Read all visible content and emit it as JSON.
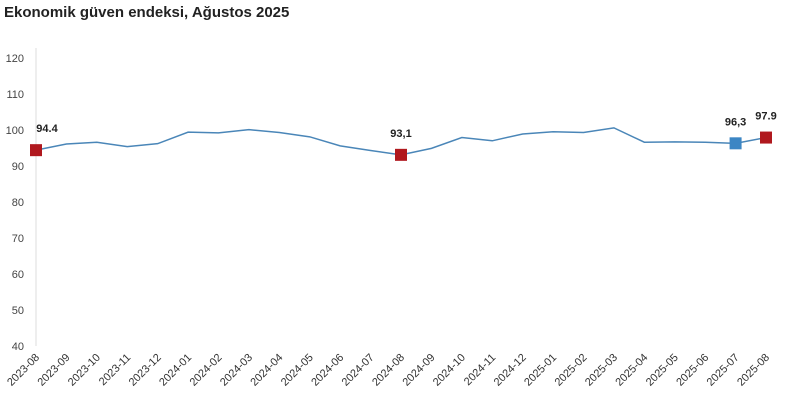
{
  "chart_data": {
    "type": "line",
    "title": "Ekonomik güven endeksi, Ağustos 2025",
    "xlabel": "",
    "ylabel": "",
    "ylim": [
      40,
      120
    ],
    "yticks": [
      40,
      50,
      60,
      70,
      80,
      90,
      100,
      110,
      120
    ],
    "categories": [
      "2023-08",
      "2023-09",
      "2023-10",
      "2023-11",
      "2023-12",
      "2024-01",
      "2024-02",
      "2024-03",
      "2024-04",
      "2024-05",
      "2024-06",
      "2024-07",
      "2024-08",
      "2024-09",
      "2024-10",
      "2024-11",
      "2024-12",
      "2025-01",
      "2025-02",
      "2025-03",
      "2025-04",
      "2025-05",
      "2025-06",
      "2025-07",
      "2025-08"
    ],
    "series": [
      {
        "name": "Ekonomik güven endeksi",
        "color": "#4a86b8",
        "values": [
          94.4,
          96.1,
          96.6,
          95.4,
          96.2,
          99.4,
          99.2,
          100.1,
          99.3,
          98.1,
          95.6,
          94.3,
          93.1,
          94.9,
          97.9,
          97.0,
          98.9,
          99.5,
          99.3,
          100.6,
          96.6,
          96.7,
          96.6,
          96.3,
          97.9
        ]
      }
    ],
    "highlights": [
      {
        "index": 0,
        "label": "94.4",
        "color": "#b0181e"
      },
      {
        "index": 12,
        "label": "93,1",
        "color": "#b0181e"
      },
      {
        "index": 23,
        "label": "96,3",
        "color": "#3c86c4"
      },
      {
        "index": 24,
        "label": "97.9",
        "color": "#b0181e"
      }
    ],
    "grid": false,
    "legend": "none"
  }
}
